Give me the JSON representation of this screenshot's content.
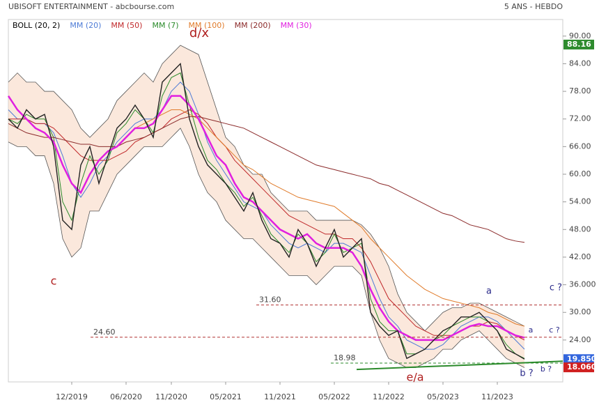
{
  "chart_data": {
    "type": "line",
    "title": "UBISOFT ENTERTAINMENT - abcbourse.com",
    "subtitle": "5 ANS - HEBDO",
    "categories": [
      null,
      null,
      null,
      null,
      null,
      null,
      null,
      "12/2019",
      null,
      null,
      null,
      null,
      null,
      "06/2020",
      null,
      null,
      null,
      null,
      "11/2020",
      null,
      null,
      null,
      null,
      null,
      "05/2021",
      null,
      null,
      null,
      null,
      null,
      "11/2021",
      null,
      null,
      null,
      null,
      null,
      "05/2022",
      null,
      null,
      null,
      null,
      null,
      "11/2022",
      null,
      null,
      null,
      null,
      null,
      "05/2023",
      null,
      null,
      null,
      null,
      null,
      "11/2023",
      null,
      null,
      null
    ],
    "values": [
      72,
      70,
      74,
      72,
      73,
      66,
      50,
      48,
      62,
      66,
      58,
      64,
      70,
      72,
      75,
      72,
      68,
      80,
      82,
      84,
      72,
      66,
      62,
      60,
      58,
      55,
      52,
      56,
      50,
      46,
      45,
      42,
      48,
      45,
      40,
      44,
      48,
      42,
      44,
      46,
      30,
      27,
      25,
      26,
      20,
      21,
      22,
      24,
      26,
      27,
      29,
      29,
      30,
      28,
      26,
      22,
      21,
      19.85
    ],
    "color": "#222222",
    "bollinger": {
      "name": "BOLL (20, 2)",
      "color": "#000000",
      "upper": [
        80,
        82,
        80,
        80,
        78,
        78,
        76,
        74,
        70,
        68,
        70,
        72,
        76,
        78,
        80,
        82,
        80,
        84,
        86,
        88,
        87,
        86,
        80,
        74,
        68,
        66,
        62,
        60,
        60,
        56,
        54,
        52,
        52,
        52,
        50,
        50,
        50,
        50,
        50,
        49,
        47,
        44,
        40,
        34,
        30,
        28,
        26,
        28,
        30,
        31,
        31,
        32,
        32,
        31,
        30,
        29,
        28,
        27
      ],
      "lower": [
        67,
        66,
        66,
        64,
        64,
        58,
        46,
        42,
        44,
        52,
        52,
        56,
        60,
        62,
        64,
        66,
        66,
        66,
        68,
        70,
        66,
        60,
        56,
        54,
        50,
        48,
        46,
        46,
        44,
        42,
        40,
        38,
        38,
        38,
        36,
        38,
        40,
        40,
        40,
        38,
        30,
        24,
        20,
        19,
        18,
        18,
        19,
        20,
        22,
        22,
        24,
        25,
        26,
        24,
        22,
        20,
        19,
        18
      ]
    },
    "series": [
      {
        "name": "MM (20)",
        "color": "#4d7bd6",
        "values": [
          74,
          72,
          72,
          71,
          71,
          69,
          64,
          58,
          55,
          58,
          62,
          64,
          67,
          69,
          71,
          72,
          72,
          74,
          78,
          80,
          78,
          73,
          67,
          63,
          60,
          57,
          54,
          53,
          52,
          49,
          47,
          45,
          44,
          45,
          44,
          43,
          45,
          45,
          44,
          43,
          38,
          33,
          29,
          27,
          24,
          23,
          22,
          22,
          23,
          25,
          27,
          28,
          29,
          29,
          28,
          26,
          24,
          22
        ]
      },
      {
        "name": "MM (50)",
        "color": "#c0282a",
        "values": [
          72,
          72,
          72,
          71,
          71,
          70,
          68,
          66,
          64,
          63,
          63,
          63,
          64,
          65,
          67,
          68,
          69,
          70,
          72,
          73,
          74,
          73,
          71,
          68,
          66,
          63,
          61,
          59,
          57,
          55,
          53,
          51,
          50,
          49,
          48,
          47,
          47,
          46,
          46,
          44,
          41,
          37,
          33,
          31,
          29,
          27,
          26,
          25,
          25,
          25,
          26,
          27,
          27,
          28,
          27.5,
          26,
          25,
          24
        ]
      },
      {
        "name": "MM (7)",
        "color": "#2a8a2a",
        "values": [
          72,
          71,
          73,
          72,
          72,
          68,
          54,
          50,
          58,
          64,
          60,
          63,
          69,
          71,
          74,
          72,
          69,
          77,
          81,
          82,
          75,
          68,
          63,
          61,
          58,
          56,
          53,
          55,
          51,
          47,
          45,
          43,
          47,
          45,
          41,
          43,
          47,
          43,
          44,
          45,
          33,
          28,
          26,
          26,
          21,
          21,
          22,
          24,
          25,
          27,
          28,
          29,
          29,
          28,
          26,
          23,
          21,
          20
        ]
      },
      {
        "name": "MM (100)",
        "color": "#e07b2a",
        "values": [
          null,
          null,
          null,
          null,
          null,
          null,
          null,
          null,
          null,
          null,
          null,
          null,
          null,
          null,
          70,
          71,
          72,
          73,
          74,
          74,
          73,
          72,
          70,
          68,
          66,
          64,
          62,
          61,
          59.5,
          58,
          57,
          56,
          55,
          54.5,
          54,
          53.5,
          53,
          51.5,
          50,
          48.5,
          46,
          44,
          42,
          40,
          38,
          36.5,
          35,
          34,
          33,
          32.5,
          32,
          31.5,
          31,
          30,
          29.5,
          28.5,
          27.5,
          27
        ]
      },
      {
        "name": "MM (200)",
        "color": "#8b2a2a",
        "values": [
          71,
          70,
          69,
          68.5,
          68,
          68,
          67.5,
          67,
          66.5,
          66.5,
          66,
          66,
          66,
          67,
          67.5,
          68,
          69,
          70,
          71,
          72,
          72.5,
          72.5,
          72,
          71.5,
          71,
          70.5,
          70,
          69,
          68,
          67,
          66,
          65,
          64,
          63,
          62,
          61.5,
          61,
          60.5,
          60,
          59.5,
          59,
          58,
          57.5,
          56.5,
          55.5,
          54.5,
          53.5,
          52.5,
          51.5,
          51,
          50,
          49,
          48.5,
          48,
          47,
          46,
          45.5,
          45.2
        ]
      },
      {
        "name": "MM (30)",
        "color": "#e020e0",
        "values": [
          77,
          74,
          72,
          70,
          69,
          67,
          62,
          58,
          56,
          60,
          63,
          65,
          66,
          68,
          70,
          70,
          71,
          74,
          77,
          77,
          75,
          72,
          68,
          64,
          62,
          58,
          55,
          54,
          52,
          50,
          48,
          47,
          46,
          47,
          45,
          44,
          44,
          44,
          43,
          40,
          35,
          31,
          28,
          26,
          25,
          24,
          24,
          24,
          24,
          25,
          26,
          27,
          27.5,
          27,
          27,
          26,
          25,
          24.5
        ]
      }
    ],
    "ylim": [
      14.9,
      93.6
    ],
    "yticks": [
      {
        "value": 24,
        "label": "24.00"
      },
      {
        "value": 30,
        "label": "30.00"
      },
      {
        "value": 36,
        "label": "36.000"
      },
      {
        "value": 42,
        "label": "42.00"
      },
      {
        "value": 48,
        "label": "48.00"
      },
      {
        "value": 54,
        "label": "54.00"
      },
      {
        "value": 60,
        "label": "60.00"
      },
      {
        "value": 66,
        "label": "66.00"
      },
      {
        "value": 72,
        "label": "72.00"
      },
      {
        "value": 78,
        "label": "78.00"
      },
      {
        "value": 84,
        "label": "84.00"
      },
      {
        "value": 90,
        "label": "90.00"
      }
    ],
    "levels": [
      {
        "value": 31.6,
        "label": "31.60"
      },
      {
        "value": 24.6,
        "label": "24.60"
      },
      18.98
    ],
    "trendline": [
      17.6,
      19.4
    ],
    "price_tags": [
      {
        "value": 88.16,
        "color": "#2e8b2e"
      },
      {
        "value": {
          "value": 19.85,
          "label": "19.850"
        },
        "color": "#3366dd"
      },
      {
        "value": {
          "value": 18.06,
          "label": "18.060"
        },
        "color": "#d02020"
      }
    ],
    "annotations": [
      "c",
      "d/x",
      "e/a",
      "a",
      "c ?",
      "a",
      "c ?",
      "b ?",
      "b ?"
    ]
  }
}
